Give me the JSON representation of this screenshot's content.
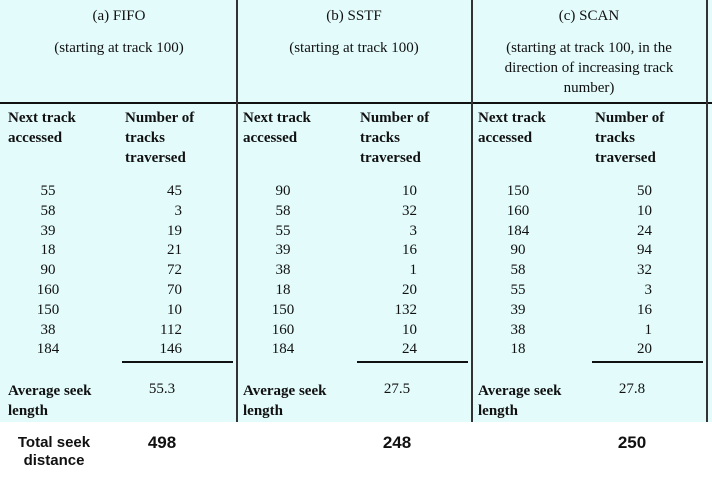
{
  "panels": [
    {
      "title": "(a) FIFO",
      "subtitle": "(starting at track 100)",
      "col_headers": [
        "Next track accessed",
        "Number of tracks traversed"
      ],
      "rows": [
        [
          55,
          45
        ],
        [
          58,
          3
        ],
        [
          39,
          19
        ],
        [
          18,
          21
        ],
        [
          90,
          72
        ],
        [
          160,
          70
        ],
        [
          150,
          10
        ],
        [
          38,
          112
        ],
        [
          184,
          146
        ]
      ],
      "average_label": "Average seek length",
      "average": 55.3,
      "total": 498
    },
    {
      "title": "(b) SSTF",
      "subtitle": "(starting at track 100)",
      "col_headers": [
        "Next track accessed",
        "Number of tracks traversed"
      ],
      "rows": [
        [
          90,
          10
        ],
        [
          58,
          32
        ],
        [
          55,
          3
        ],
        [
          39,
          16
        ],
        [
          38,
          1
        ],
        [
          18,
          20
        ],
        [
          150,
          132
        ],
        [
          160,
          10
        ],
        [
          184,
          24
        ]
      ],
      "average_label": "Average seek length",
      "average": 27.5,
      "total": 248
    },
    {
      "title": "(c) SCAN",
      "subtitle": "(starting at track 100, in the direction of increasing track number)",
      "col_headers": [
        "Next track accessed",
        "Number of tracks traversed"
      ],
      "rows": [
        [
          150,
          50
        ],
        [
          160,
          10
        ],
        [
          184,
          24
        ],
        [
          90,
          94
        ],
        [
          58,
          32
        ],
        [
          55,
          3
        ],
        [
          39,
          16
        ],
        [
          38,
          1
        ],
        [
          18,
          20
        ]
      ],
      "average_label": "Average seek length",
      "average": 27.8,
      "total": 250
    }
  ],
  "total_label": "Total seek distance"
}
